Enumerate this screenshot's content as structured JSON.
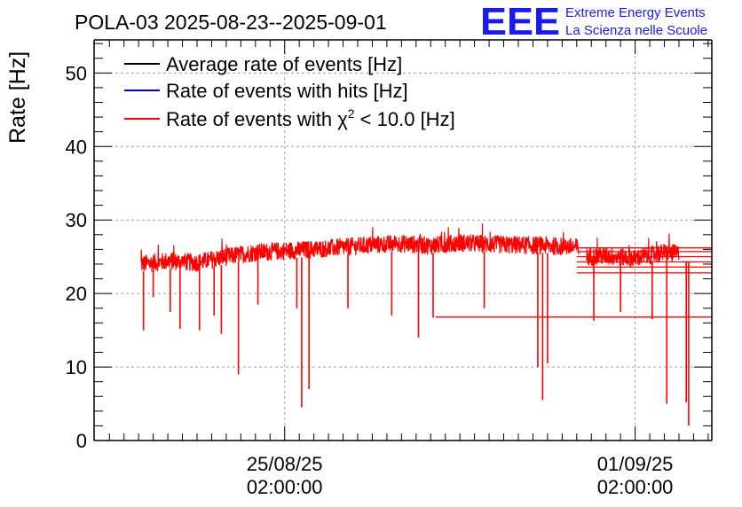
{
  "header": {
    "title": "POLA-03 2025-08-23--2025-09-01",
    "logo_letters": "EEE",
    "logo_line1": "Extreme Energy Events",
    "logo_line2": "La Scienza nelle Scuole"
  },
  "colors": {
    "average": "#000000",
    "hits": "#0000cc",
    "chi2": "#ff0000",
    "grid": "#a0a0a0",
    "logo": "#1a1aee"
  },
  "chart_data": {
    "type": "line",
    "title": "POLA-03 2025-08-23--2025-09-01",
    "xlabel": "",
    "ylabel": "Rate [Hz]",
    "ylim": [
      0,
      54.5
    ],
    "xlim_hours": [
      -30.3,
      223.5
    ],
    "x_unit": "hours since 2025-08-23 02:00:00",
    "grid": true,
    "legend_position": "top-left",
    "y_ticks": [
      0,
      10,
      20,
      30,
      40,
      50
    ],
    "x_ticks": [
      {
        "hours": 48,
        "line1": "25/08/25",
        "line2": "02:00:00"
      },
      {
        "hours": 192,
        "line1": "01/09/25",
        "line2": "02:00:00"
      }
    ],
    "series": [
      {
        "name": "Average rate of events [Hz]",
        "legend_main": "Average rate of events [Hz]",
        "color_key": "average",
        "visible_in_plot": false
      },
      {
        "name": "Rate of events with hits [Hz]",
        "legend_main": "Rate of events with hits [Hz]",
        "color_key": "hits",
        "visible_in_plot": false
      },
      {
        "name": "Rate of events with chi2 < 10.0 [Hz]",
        "legend_main": "Rate of events with χ",
        "legend_sup": "2",
        "legend_tail": " < 10.0 [Hz]",
        "color_key": "chi2",
        "visible_in_plot": true
      }
    ],
    "trend": {
      "hours": [
        -11,
        0,
        12,
        24,
        36,
        48,
        60,
        72,
        84,
        96,
        108,
        120,
        132,
        144,
        156,
        168,
        172,
        180,
        192,
        204,
        210
      ],
      "values": [
        24.0,
        24.4,
        24.2,
        25.0,
        25.6,
        25.8,
        26.0,
        26.3,
        26.6,
        26.8,
        26.5,
        26.9,
        26.7,
        26.6,
        26.5,
        26.3,
        25.0,
        25.1,
        24.8,
        25.6,
        25.4
      ],
      "noise_amplitude": 1.2
    },
    "dips": [
      {
        "hours": -10,
        "value": 15.0
      },
      {
        "hours": -6,
        "value": 19.5
      },
      {
        "hours": 1,
        "value": 17.5
      },
      {
        "hours": 5,
        "value": 15.2
      },
      {
        "hours": 13,
        "value": 15.0
      },
      {
        "hours": 19,
        "value": 17.0
      },
      {
        "hours": 22,
        "value": 14.5
      },
      {
        "hours": 29,
        "value": 9.0
      },
      {
        "hours": 37,
        "value": 18.5
      },
      {
        "hours": 53,
        "value": 18.0
      },
      {
        "hours": 55,
        "value": 4.5
      },
      {
        "hours": 58,
        "value": 7.0
      },
      {
        "hours": 74,
        "value": 18.0
      },
      {
        "hours": 92,
        "value": 17.0
      },
      {
        "hours": 103,
        "value": 14.0
      },
      {
        "hours": 109,
        "value": 16.7
      },
      {
        "hours": 130,
        "value": 18.0
      },
      {
        "hours": 152,
        "value": 10.0
      },
      {
        "hours": 154,
        "value": 5.5
      },
      {
        "hours": 156,
        "value": 10.5
      },
      {
        "hours": 175,
        "value": 16.3
      },
      {
        "hours": 186,
        "value": 17.5
      },
      {
        "hours": 199,
        "value": 16.5
      },
      {
        "hours": 205,
        "value": 5.0
      },
      {
        "hours": 213,
        "value": 5.2
      },
      {
        "hours": 214,
        "value": 2.0
      }
    ],
    "tail_lines": [
      {
        "from_hours": 110,
        "value": 16.8
      },
      {
        "from_hours": 168,
        "value": 22.8
      },
      {
        "from_hours": 168,
        "value": 23.6
      },
      {
        "from_hours": 168,
        "value": 24.3
      },
      {
        "from_hours": 168,
        "value": 25.0
      },
      {
        "from_hours": 168,
        "value": 25.7
      },
      {
        "from_hours": 168,
        "value": 26.2
      }
    ]
  }
}
